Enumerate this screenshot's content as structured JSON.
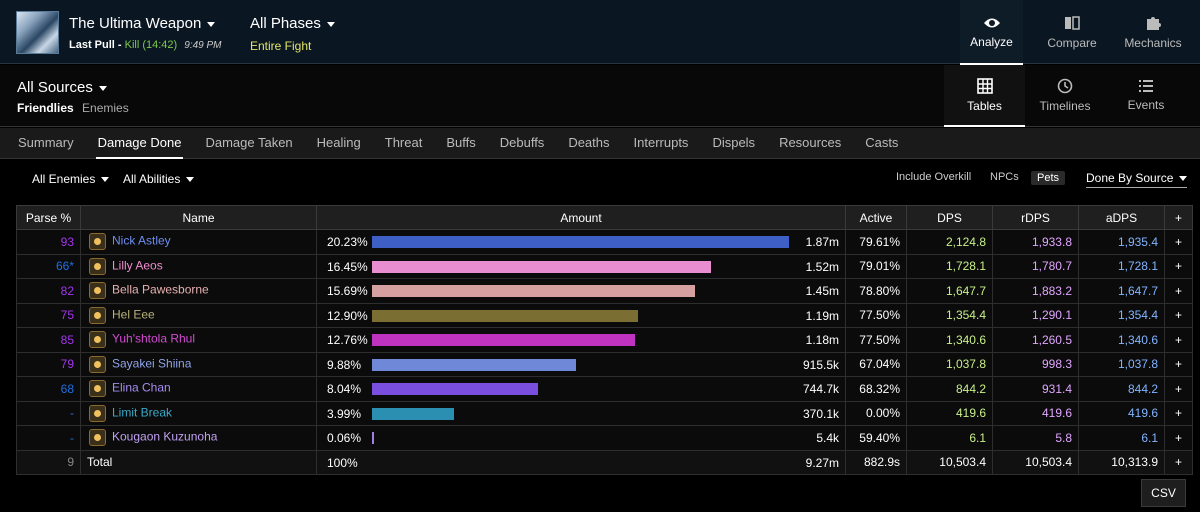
{
  "encounter": {
    "title": "The Ultima Weapon",
    "last_pull_label": "Last Pull -",
    "result": "Kill (14:42)",
    "time": "9:49 PM"
  },
  "phase": {
    "title": "All Phases",
    "subtitle": "Entire Fight"
  },
  "top_nav": [
    {
      "label": "Analyze",
      "icon": "eye-icon"
    },
    {
      "label": "Compare",
      "icon": "compare-icon"
    },
    {
      "label": "Mechanics",
      "icon": "puzzle-icon"
    }
  ],
  "sources": {
    "title": "All Sources",
    "friendlies": "Friendlies",
    "enemies": "Enemies"
  },
  "view_nav": [
    {
      "label": "Tables",
      "icon": "grid-icon"
    },
    {
      "label": "Timelines",
      "icon": "clock-icon"
    },
    {
      "label": "Events",
      "icon": "list-icon"
    }
  ],
  "tabs": [
    "Summary",
    "Damage Done",
    "Damage Taken",
    "Healing",
    "Threat",
    "Buffs",
    "Debuffs",
    "Deaths",
    "Interrupts",
    "Dispels",
    "Resources",
    "Casts"
  ],
  "active_tab": "Damage Done",
  "filters": {
    "enemies": "All Enemies",
    "abilities": "All Abilities",
    "include_overkill": "Include Overkill",
    "npcs": "NPCs",
    "pets": "Pets",
    "done_by": "Done By Source"
  },
  "table": {
    "headers": {
      "parse": "Parse %",
      "name": "Name",
      "amount": "Amount",
      "active": "Active",
      "dps": "DPS",
      "rdps": "rDPS",
      "adps": "aDPS",
      "plus": "+"
    },
    "rows": [
      {
        "parse": "93",
        "parse_color": "#a335ee",
        "name": "Nick Astley",
        "name_color": "#6e8cf0",
        "pct": "20.23%",
        "fraction": 0.2023,
        "bar_color": "#3e5fc6",
        "amount": "1.87m",
        "active": "79.61%",
        "dps": "2,124.8",
        "rdps": "1,933.8",
        "adps": "1,935.4"
      },
      {
        "parse": "66*",
        "parse_color": "#1f6fe0",
        "name": "Lilly Aeos",
        "name_color": "#f08ccf",
        "pct": "16.45%",
        "fraction": 0.1645,
        "bar_color": "#e88dcf",
        "amount": "1.52m",
        "active": "79.01%",
        "dps": "1,728.1",
        "rdps": "1,780.7",
        "adps": "1,728.1"
      },
      {
        "parse": "82",
        "parse_color": "#a335ee",
        "name": "Bella Pawesborne",
        "name_color": "#e6b0b0",
        "pct": "15.69%",
        "fraction": 0.1569,
        "bar_color": "#d7a0a0",
        "amount": "1.45m",
        "active": "78.80%",
        "dps": "1,647.7",
        "rdps": "1,883.2",
        "adps": "1,647.7"
      },
      {
        "parse": "75",
        "parse_color": "#a335ee",
        "name": "Hel Eee",
        "name_color": "#b9b37a",
        "pct": "12.90%",
        "fraction": 0.129,
        "bar_color": "#7a6e32",
        "amount": "1.19m",
        "active": "77.50%",
        "dps": "1,354.4",
        "rdps": "1,290.1",
        "adps": "1,354.4"
      },
      {
        "parse": "85",
        "parse_color": "#a335ee",
        "name": "Yuh'shtola Rhul",
        "name_color": "#d24bd2",
        "pct": "12.76%",
        "fraction": 0.1276,
        "bar_color": "#c033c0",
        "amount": "1.18m",
        "active": "77.50%",
        "dps": "1,340.6",
        "rdps": "1,260.5",
        "adps": "1,340.6"
      },
      {
        "parse": "79",
        "parse_color": "#a335ee",
        "name": "Sayakei Shiina",
        "name_color": "#8fa3e6",
        "pct": "9.88%",
        "fraction": 0.0988,
        "bar_color": "#7088d8",
        "amount": "915.5k",
        "active": "67.04%",
        "dps": "1,037.8",
        "rdps": "998.3",
        "adps": "1,037.8"
      },
      {
        "parse": "68",
        "parse_color": "#1f6fe0",
        "name": "Elina Chan",
        "name_color": "#a58cf0",
        "pct": "8.04%",
        "fraction": 0.0804,
        "bar_color": "#7a4fe0",
        "amount": "744.7k",
        "active": "68.32%",
        "dps": "844.2",
        "rdps": "931.4",
        "adps": "844.2"
      },
      {
        "parse": "-",
        "parse_color": "#1f6fe0",
        "name": "Limit Break",
        "name_color": "#3aa8c8",
        "pct": "3.99%",
        "fraction": 0.0399,
        "bar_color": "#2a8fb0",
        "amount": "370.1k",
        "active": "0.00%",
        "dps": "419.6",
        "rdps": "419.6",
        "adps": "419.6"
      },
      {
        "parse": "-",
        "parse_color": "#1f6fe0",
        "name": "Kougaon Kuzunoha",
        "name_color": "#c0a0f0",
        "pct": "0.06%",
        "fraction": 0.0006,
        "bar_color": "#a080e0",
        "amount": "5.4k",
        "active": "59.40%",
        "dps": "6.1",
        "rdps": "5.8",
        "adps": "6.1"
      }
    ],
    "total": {
      "count": "9",
      "label": "Total",
      "pct": "100%",
      "amount": "9.27m",
      "active": "882.9s",
      "dps": "10,503.4",
      "rdps": "10,503.4",
      "adps": "10,313.9"
    }
  },
  "csv_label": "CSV"
}
